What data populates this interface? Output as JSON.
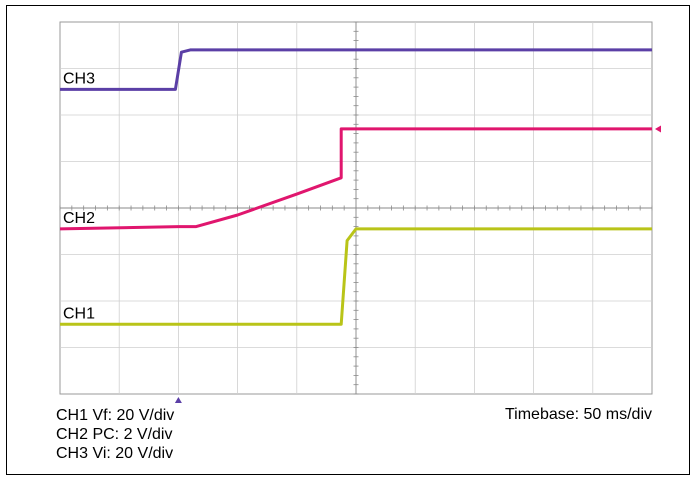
{
  "chart_data": {
    "type": "line",
    "divisions": {
      "x": 10,
      "y": 8
    },
    "x_unit": "div",
    "y_unit": "div",
    "grid": true,
    "trigger_marker_x": 2,
    "series": [
      {
        "name": "CH3",
        "color": "#5b3fa6",
        "points": [
          [
            0,
            6.55
          ],
          [
            1.95,
            6.55
          ],
          [
            2.05,
            7.35
          ],
          [
            2.2,
            7.4
          ],
          [
            10,
            7.4
          ]
        ]
      },
      {
        "name": "CH2",
        "color": "#e0166e",
        "points": [
          [
            0,
            3.55
          ],
          [
            2.0,
            3.6
          ],
          [
            2.3,
            3.6
          ],
          [
            3.0,
            3.85
          ],
          [
            4.0,
            4.3
          ],
          [
            4.75,
            4.65
          ],
          [
            4.75,
            5.7
          ],
          [
            10,
            5.7
          ]
        ]
      },
      {
        "name": "CH1",
        "color": "#b9c418",
        "points": [
          [
            0,
            1.5
          ],
          [
            4.75,
            1.5
          ],
          [
            4.85,
            3.3
          ],
          [
            5.0,
            3.55
          ],
          [
            10,
            3.55
          ]
        ]
      }
    ],
    "legend_lines": [
      "CH1 Vf: 20 V/div",
      "CH2 PC: 2 V/div",
      "CH3 Vi: 20 V/div"
    ],
    "timebase_label": "Timebase: 50 ms/div"
  }
}
